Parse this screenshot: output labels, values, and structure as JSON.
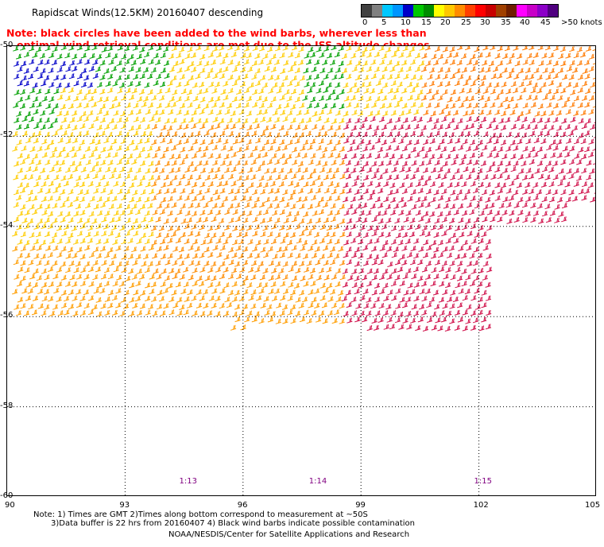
{
  "header": {
    "title": "Rapidscat Winds(12.5KM) 20160407 descending"
  },
  "note": {
    "line1": "Note: black circles have been added to the wind barbs, wherever less than",
    "line2": "   optimal wind retrieval conditions are met due to the ISS altitude changes."
  },
  "legend": {
    "colors": [
      "#404040",
      "#808080",
      "#00c8ff",
      "#0096ff",
      "#0000c8",
      "#00c800",
      "#008c00",
      "#ffff00",
      "#ffc800",
      "#ff8c00",
      "#ff4000",
      "#ff0000",
      "#c80000",
      "#a04000",
      "#6e1e00",
      "#ff00ff",
      "#c800c8",
      "#8c00c8",
      "#500080"
    ],
    "labels": [
      "0",
      "5",
      "10",
      "15",
      "20",
      "25",
      "30",
      "35",
      "40",
      "45",
      ">50 knots"
    ]
  },
  "map": {
    "lat_labels": [
      "-50",
      "-52",
      "-54",
      "-56",
      "-58",
      "-60"
    ],
    "lon_labels": [
      "90",
      "93",
      "96",
      "99",
      "102",
      "105"
    ],
    "lat_range": [
      -60,
      -50
    ],
    "lon_range": [
      90,
      105
    ],
    "time_labels": [
      {
        "lon": 94.6,
        "text": "1:13"
      },
      {
        "lon": 97.9,
        "text": "1:14"
      },
      {
        "lon": 102.1,
        "text": "1:15"
      }
    ],
    "colors": {
      "gridline": "#000000",
      "time_label": "#800080"
    }
  },
  "footer": {
    "line1": "Note: 1) Times are GMT 2)Times along bottom correspond to measurement at ~50S",
    "line2": "3)Data buffer is 22 hrs from 20160407 4) Black wind barbs indicate possible contamination",
    "line3": "NOAA/NESDIS/Center for Satellite Applications and Research"
  }
}
